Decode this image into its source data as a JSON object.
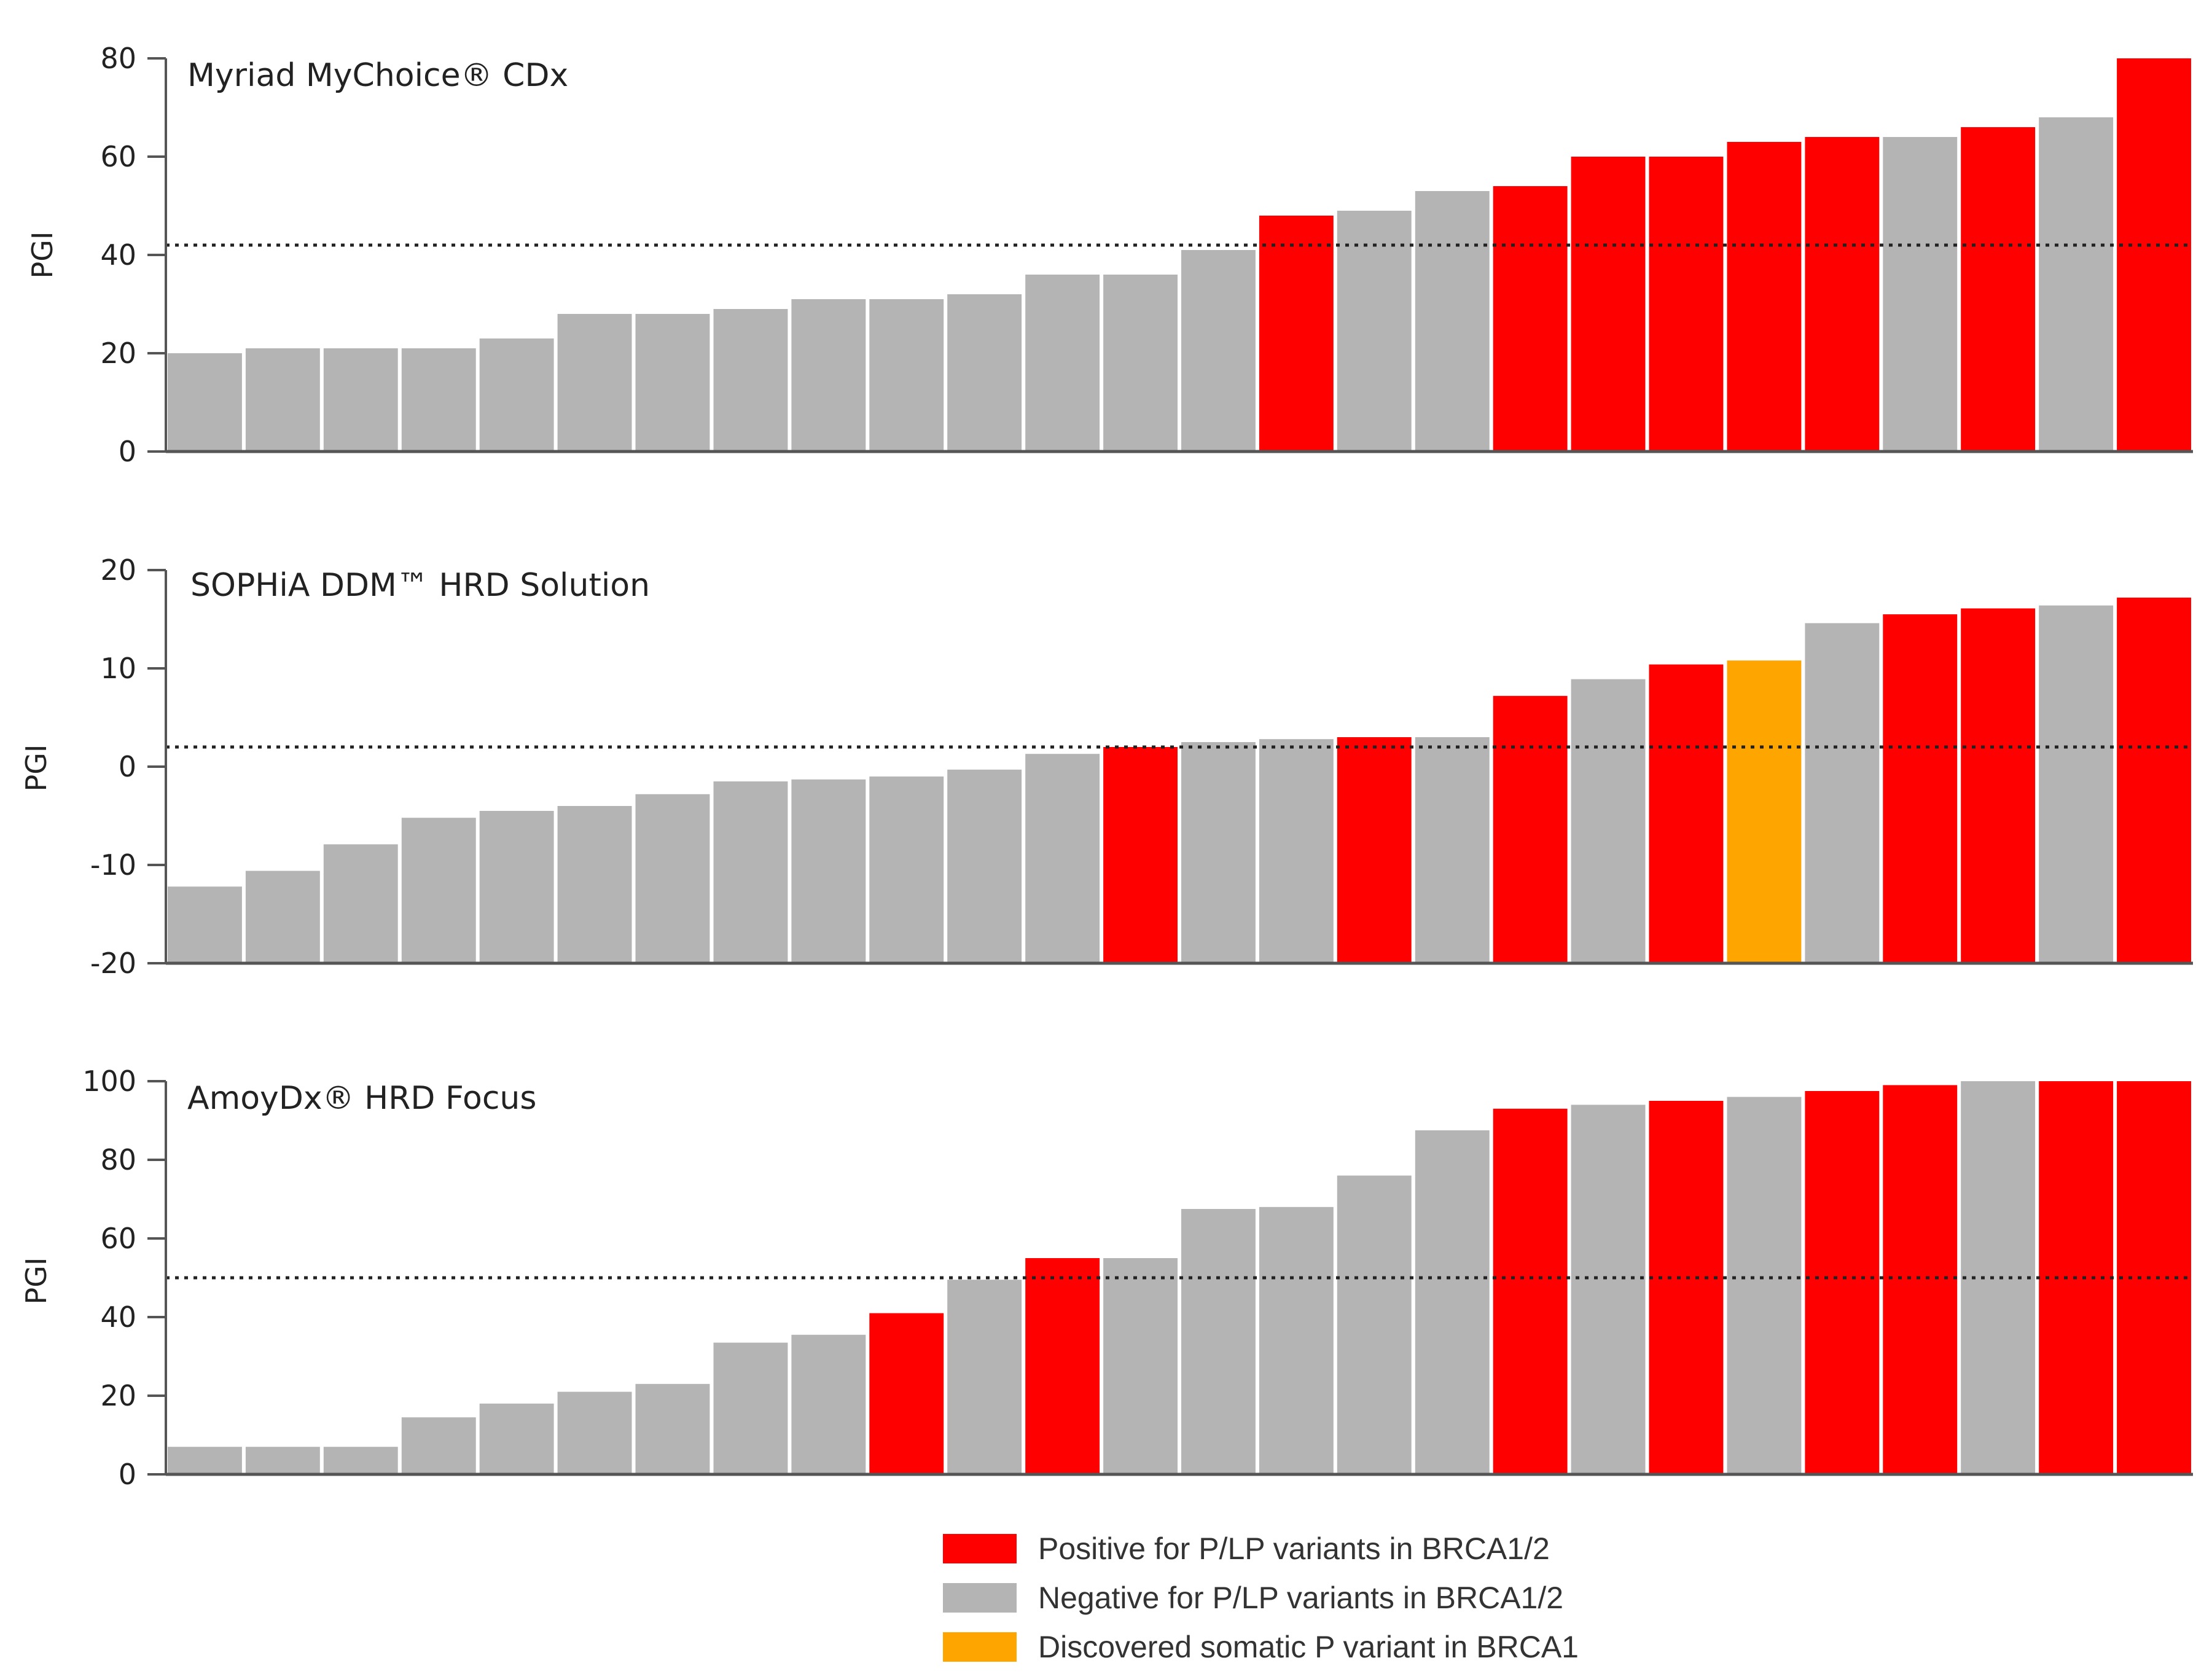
{
  "colors": {
    "positive": "#ff0000",
    "negative": "#b4b4b4",
    "somatic": "#ffa500"
  },
  "legend": [
    {
      "key": "positive",
      "label": "Positive for P/LP variants in BRCA1/2"
    },
    {
      "key": "negative",
      "label": "Negative for P/LP variants in BRCA1/2"
    },
    {
      "key": "somatic",
      "label": "Discovered somatic P variant in BRCA1"
    }
  ],
  "chart_data": [
    {
      "type": "bar",
      "title": "Myriad MyChoice® CDx",
      "ylabel": "PGI",
      "ylim": [
        0,
        80
      ],
      "yticks": [
        0,
        20,
        40,
        60,
        80
      ],
      "threshold": 42,
      "values": [
        20,
        21,
        21,
        21,
        23,
        28,
        28,
        29,
        31,
        31,
        32,
        36,
        36,
        41,
        48,
        49,
        53,
        54,
        60,
        60,
        63,
        64,
        64,
        66,
        68,
        80
      ],
      "status": [
        "negative",
        "negative",
        "negative",
        "negative",
        "negative",
        "negative",
        "negative",
        "negative",
        "negative",
        "negative",
        "negative",
        "negative",
        "negative",
        "negative",
        "positive",
        "negative",
        "negative",
        "positive",
        "positive",
        "positive",
        "positive",
        "positive",
        "negative",
        "positive",
        "negative",
        "positive"
      ]
    },
    {
      "type": "bar",
      "title": "SOPHiA DDM™ HRD Solution",
      "ylabel": "PGI",
      "ylim": [
        -20,
        20
      ],
      "yticks": [
        -20,
        -10,
        0,
        10,
        20
      ],
      "threshold": 2,
      "values": [
        -12.2,
        -10.6,
        -7.9,
        -5.2,
        -4.5,
        -4.0,
        -2.8,
        -1.5,
        -1.3,
        -1.0,
        -0.3,
        1.3,
        2.0,
        2.5,
        2.8,
        3.0,
        3.0,
        7.2,
        8.9,
        10.4,
        10.8,
        14.6,
        15.5,
        16.1,
        16.4,
        17.2
      ],
      "status": [
        "negative",
        "negative",
        "negative",
        "negative",
        "negative",
        "negative",
        "negative",
        "negative",
        "negative",
        "negative",
        "negative",
        "negative",
        "positive",
        "negative",
        "negative",
        "positive",
        "negative",
        "positive",
        "negative",
        "positive",
        "somatic",
        "negative",
        "positive",
        "positive",
        "negative",
        "positive"
      ]
    },
    {
      "type": "bar",
      "title": "AmoyDx® HRD Focus",
      "ylabel": "PGI",
      "ylim": [
        0,
        100
      ],
      "yticks": [
        0,
        20,
        40,
        60,
        80,
        100
      ],
      "threshold": 50,
      "values": [
        7,
        7,
        7,
        14.5,
        18,
        21,
        23,
        33.5,
        35.5,
        41,
        49.5,
        55,
        55,
        67.5,
        68,
        76,
        87.5,
        93,
        94,
        95,
        96,
        97.5,
        99,
        100,
        100,
        100
      ],
      "status": [
        "negative",
        "negative",
        "negative",
        "negative",
        "negative",
        "negative",
        "negative",
        "negative",
        "negative",
        "positive",
        "negative",
        "positive",
        "negative",
        "negative",
        "negative",
        "negative",
        "negative",
        "positive",
        "negative",
        "positive",
        "negative",
        "positive",
        "positive",
        "negative",
        "positive",
        "positive"
      ]
    }
  ]
}
